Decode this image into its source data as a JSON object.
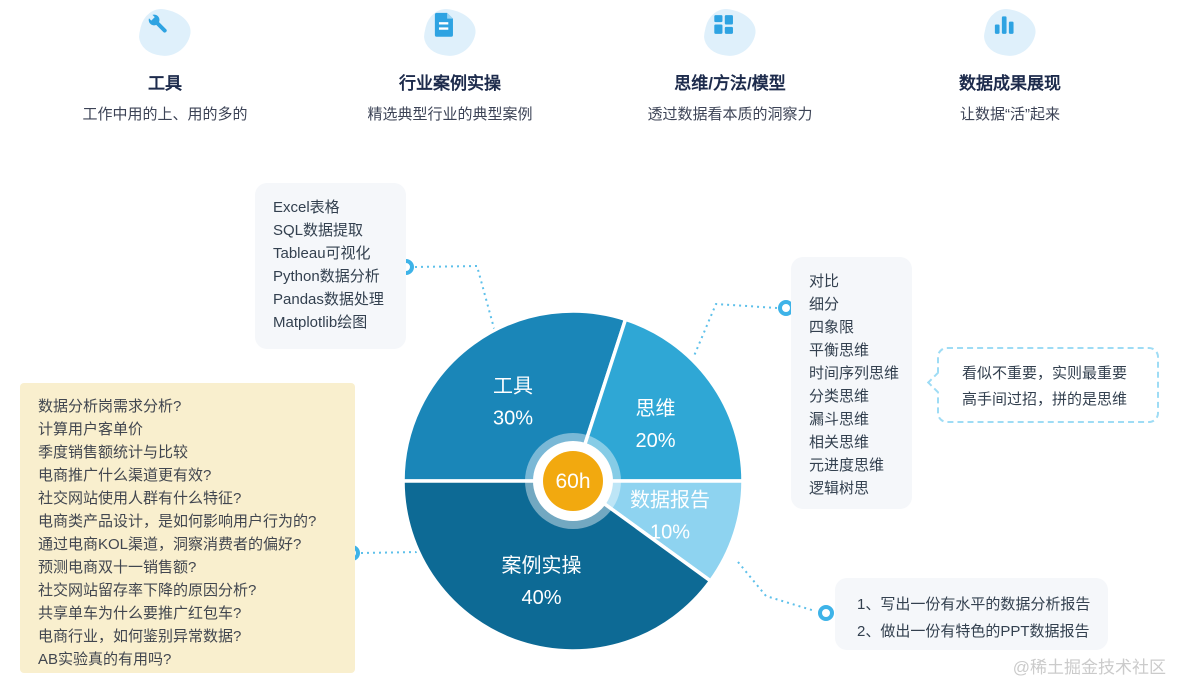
{
  "features": [
    {
      "icon": "wrench-icon",
      "title": "工具",
      "subtitle": "工作中用的上、用的多的"
    },
    {
      "icon": "document-icon",
      "title": "行业案例实操",
      "subtitle": "精选典型行业的典型案例"
    },
    {
      "icon": "grid-icon",
      "title": "思维/方法/模型",
      "subtitle": "透过数据看本质的洞察力"
    },
    {
      "icon": "bar-chart-icon",
      "title": "数据成果展现",
      "subtitle": "让数据“活”起来"
    }
  ],
  "tools_box": {
    "items": [
      "Excel表格",
      "SQL数据提取",
      "Tableau可视化",
      "Python数据分析",
      "Pandas数据处理",
      "Matplotlib绘图"
    ]
  },
  "thinking_box": {
    "items": [
      "对比",
      "细分",
      "四象限",
      "平衡思维",
      "时间序列思维",
      "分类思维",
      "漏斗思维",
      "相关思维",
      "元进度思维",
      "逻辑树思"
    ]
  },
  "questions_box": {
    "items": [
      "数据分析岗需求分析?",
      "计算用户客单价",
      "季度销售额统计与比较",
      "电商推广什么渠道更有效?",
      "社交网站使用人群有什么特征?",
      "电商类产品设计，是如何影响用户行为的?",
      "通过电商KOL渠道，洞察消费者的偏好?",
      "预测电商双十一销售额?",
      "社交网站留存率下降的原因分析?",
      "共享单车为什么要推广红包车?",
      "电商行业，如何鉴别异常数据?",
      "AB实验真的有用吗?"
    ]
  },
  "bubble": {
    "lines": [
      "看似不重要，实则最重要",
      "高手间过招，拼的是思维"
    ]
  },
  "report_box": {
    "items": [
      "1、写出一份有水平的数据分析报告",
      "2、做出一份有特色的PPT数据报告"
    ]
  },
  "watermark": "@稀土掘金技术社区",
  "chart_data": {
    "type": "pie",
    "center_label": "60h",
    "unit": "%",
    "slices": [
      {
        "label": "工具",
        "value": 30,
        "start_angle": 72,
        "end_angle": 180,
        "color": "#1a86b8"
      },
      {
        "label": "思维",
        "value": 20,
        "start_angle": 0,
        "end_angle": 72,
        "color": "#2fa7d5"
      },
      {
        "label": "数据报告",
        "value": 10,
        "start_angle": -36,
        "end_angle": 0,
        "color": "#8ed3f0"
      },
      {
        "label": "案例实操",
        "value": 40,
        "start_angle": 180,
        "end_angle": 324,
        "color": "#0d6a95"
      }
    ]
  },
  "colors": {
    "accent_blue": "#2ea3e2",
    "center_orange": "#f2a90f",
    "yellow_panel": "#f9efce",
    "gray_panel": "#f5f7fa",
    "connector": "#3eb3e8"
  }
}
